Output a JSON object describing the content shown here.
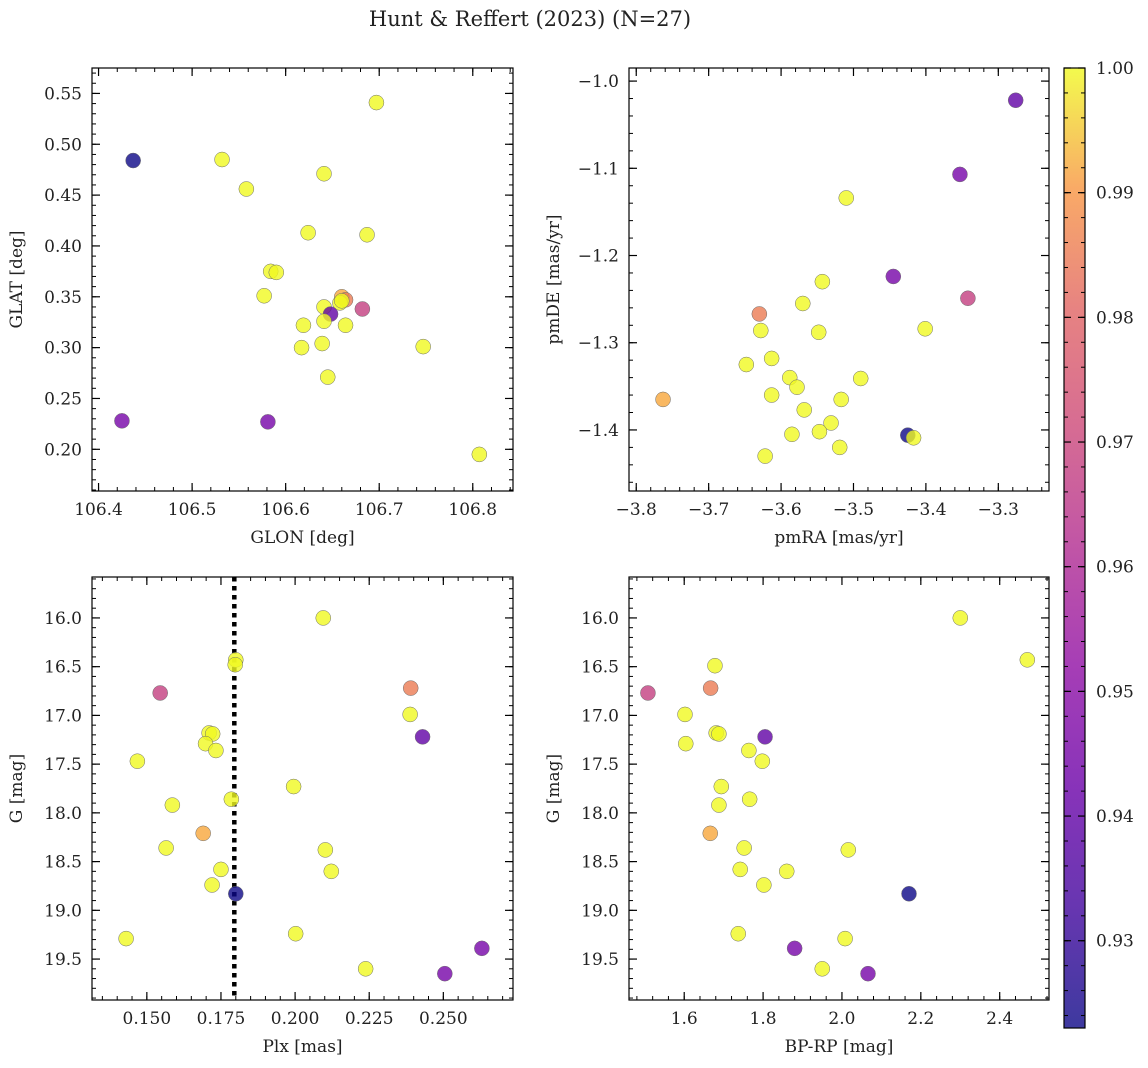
{
  "figure": {
    "title": "Hunt & Reffert (2023) (N=27)"
  },
  "colorbar": {
    "colormap": "plasma",
    "vmin": 0.923,
    "vmax": 1.0,
    "ticks": [
      0.93,
      0.94,
      0.95,
      0.96,
      0.97,
      0.98,
      0.99,
      1.0
    ],
    "tick_labels": [
      "0.93",
      "0.94",
      "0.95",
      "0.96",
      "0.97",
      "0.98",
      "0.99",
      "1.00"
    ]
  },
  "chart_data": [
    {
      "type": "scatter",
      "id": "ax1",
      "xlabel": "GLON [deg]",
      "ylabel": "GLAT [deg]",
      "xlim": [
        106.393,
        106.843
      ],
      "ylim": [
        0.159,
        0.575
      ],
      "xticks": [
        106.4,
        106.5,
        106.6,
        106.7,
        106.8
      ],
      "xtick_labels": [
        "106.4",
        "106.5",
        "106.6",
        "106.7",
        "106.8"
      ],
      "yticks": [
        0.2,
        0.25,
        0.3,
        0.35,
        0.4,
        0.45,
        0.5,
        0.55
      ],
      "ytick_labels": [
        "0.20",
        "0.25",
        "0.30",
        "0.35",
        "0.40",
        "0.45",
        "0.50",
        "0.55"
      ],
      "x": [
        106.437,
        106.532,
        106.558,
        106.697,
        106.641,
        106.624,
        106.687,
        106.584,
        106.59,
        106.577,
        106.66,
        106.664,
        106.658,
        106.641,
        106.682,
        106.648,
        106.641,
        106.619,
        106.664,
        106.639,
        106.617,
        106.747,
        106.645,
        106.425,
        106.581,
        106.807,
        106.66
      ],
      "y": [
        0.484,
        0.485,
        0.456,
        0.541,
        0.471,
        0.413,
        0.411,
        0.375,
        0.374,
        0.351,
        0.35,
        0.347,
        0.344,
        0.34,
        0.338,
        0.333,
        0.326,
        0.322,
        0.322,
        0.304,
        0.3,
        0.301,
        0.271,
        0.228,
        0.227,
        0.195,
        0.346
      ],
      "c": [
        0.923,
        1.0,
        1.0,
        1.0,
        1.0,
        1.0,
        1.0,
        1.0,
        1.0,
        1.0,
        0.992,
        0.985,
        1.0,
        1.0,
        0.968,
        0.94,
        1.0,
        1.0,
        1.0,
        1.0,
        1.0,
        1.0,
        1.0,
        0.945,
        0.945,
        1.0,
        1.0
      ]
    },
    {
      "type": "scatter",
      "id": "ax2",
      "xlabel": "pmRA [mas/yr]",
      "ylabel": "pmDE [mas/yr]",
      "xlim": [
        -3.81,
        -3.23
      ],
      "ylim": [
        -1.47,
        -0.985
      ],
      "xticks": [
        -3.8,
        -3.7,
        -3.6,
        -3.5,
        -3.4,
        -3.3
      ],
      "xtick_labels": [
        "−3.8",
        "−3.7",
        "−3.6",
        "−3.5",
        "−3.4",
        "−3.3"
      ],
      "yticks": [
        -1.4,
        -1.3,
        -1.2,
        -1.1,
        -1.0
      ],
      "ytick_labels": [
        "−1.4",
        "−1.3",
        "−1.2",
        "−1.1",
        "−1.0"
      ],
      "x": [
        -3.276,
        -3.353,
        -3.51,
        -3.445,
        -3.543,
        -3.57,
        -3.63,
        -3.628,
        -3.342,
        -3.548,
        -3.401,
        -3.613,
        -3.648,
        -3.763,
        -3.588,
        -3.578,
        -3.613,
        -3.49,
        -3.568,
        -3.517,
        -3.531,
        -3.425,
        -3.417,
        -3.585,
        -3.547,
        -3.519,
        -3.622
      ],
      "y": [
        -1.022,
        -1.107,
        -1.134,
        -1.224,
        -1.23,
        -1.255,
        -1.267,
        -1.286,
        -1.249,
        -1.288,
        -1.284,
        -1.318,
        -1.325,
        -1.365,
        -1.34,
        -1.351,
        -1.36,
        -1.341,
        -1.377,
        -1.365,
        -1.392,
        -1.406,
        -1.409,
        -1.405,
        -1.402,
        -1.42,
        -1.43
      ],
      "c": [
        0.94,
        0.945,
        1.0,
        0.945,
        1.0,
        1.0,
        0.985,
        1.0,
        0.968,
        1.0,
        1.0,
        1.0,
        1.0,
        0.992,
        1.0,
        1.0,
        1.0,
        1.0,
        1.0,
        1.0,
        1.0,
        0.923,
        1.0,
        1.0,
        1.0,
        1.0,
        1.0
      ]
    },
    {
      "type": "scatter",
      "id": "ax3",
      "xlabel": "Plx [mas]",
      "ylabel": "G [mag]",
      "xlim": [
        0.1315,
        0.2735
      ],
      "ylim": [
        19.92,
        15.58
      ],
      "inverted_y": true,
      "vline": 0.1795,
      "xticks": [
        0.15,
        0.175,
        0.2,
        0.225,
        0.25
      ],
      "xtick_labels": [
        "0.150",
        "0.175",
        "0.200",
        "0.225",
        "0.250"
      ],
      "yticks": [
        16.0,
        16.5,
        17.0,
        17.5,
        18.0,
        18.5,
        19.0,
        19.5
      ],
      "ytick_labels": [
        "16.0",
        "16.5",
        "17.0",
        "17.5",
        "18.0",
        "18.5",
        "19.0",
        "19.5"
      ],
      "x": [
        0.2095,
        0.18,
        0.1798,
        0.1545,
        0.239,
        0.2388,
        0.243,
        0.171,
        0.1722,
        0.1698,
        0.1733,
        0.1468,
        0.1785,
        0.1995,
        0.1586,
        0.169,
        0.2102,
        0.1565,
        0.175,
        0.2122,
        0.172,
        0.18,
        0.2002,
        0.143,
        0.2238,
        0.263,
        0.2505
      ],
      "y": [
        16.0,
        16.43,
        16.48,
        16.77,
        16.72,
        16.99,
        17.22,
        17.18,
        17.19,
        17.29,
        17.36,
        17.47,
        17.86,
        17.73,
        17.92,
        18.21,
        18.38,
        18.36,
        18.58,
        18.6,
        18.74,
        18.83,
        19.24,
        19.29,
        19.6,
        19.39,
        19.65
      ],
      "c": [
        1.0,
        1.0,
        1.0,
        0.968,
        0.985,
        1.0,
        0.94,
        1.0,
        1.0,
        1.0,
        1.0,
        1.0,
        1.0,
        1.0,
        1.0,
        0.992,
        1.0,
        1.0,
        1.0,
        1.0,
        1.0,
        0.923,
        1.0,
        1.0,
        1.0,
        0.945,
        0.945
      ]
    },
    {
      "type": "scatter",
      "id": "ax4",
      "xlabel": "BP-RP [mag]",
      "ylabel": "G [mag]",
      "xlim": [
        1.46,
        2.525
      ],
      "ylim": [
        19.92,
        15.58
      ],
      "inverted_y": true,
      "xticks": [
        1.6,
        1.8,
        2.0,
        2.2,
        2.4
      ],
      "xtick_labels": [
        "1.6",
        "1.8",
        "2.0",
        "2.2",
        "2.4"
      ],
      "yticks": [
        16.0,
        16.5,
        17.0,
        17.5,
        18.0,
        18.5,
        19.0,
        19.5
      ],
      "ytick_labels": [
        "16.0",
        "16.5",
        "17.0",
        "17.5",
        "18.0",
        "18.5",
        "19.0",
        "19.5"
      ],
      "x": [
        2.3,
        2.47,
        1.678,
        1.508,
        1.667,
        1.602,
        1.681,
        1.688,
        1.604,
        1.805,
        1.764,
        1.798,
        1.694,
        1.766,
        1.688,
        1.666,
        2.016,
        1.752,
        1.742,
        1.86,
        1.802,
        2.17,
        1.737,
        2.008,
        1.95,
        1.88,
        2.066
      ],
      "y": [
        16.0,
        16.43,
        16.49,
        16.77,
        16.72,
        16.99,
        17.18,
        17.19,
        17.29,
        17.22,
        17.36,
        17.47,
        17.73,
        17.86,
        17.92,
        18.21,
        18.38,
        18.36,
        18.58,
        18.6,
        18.74,
        18.83,
        19.24,
        19.29,
        19.6,
        19.39,
        19.65
      ],
      "c": [
        1.0,
        1.0,
        1.0,
        0.968,
        0.985,
        1.0,
        1.0,
        1.0,
        1.0,
        0.94,
        1.0,
        1.0,
        1.0,
        1.0,
        1.0,
        0.992,
        1.0,
        1.0,
        1.0,
        1.0,
        1.0,
        0.923,
        1.0,
        1.0,
        1.0,
        0.945,
        0.945
      ]
    }
  ]
}
